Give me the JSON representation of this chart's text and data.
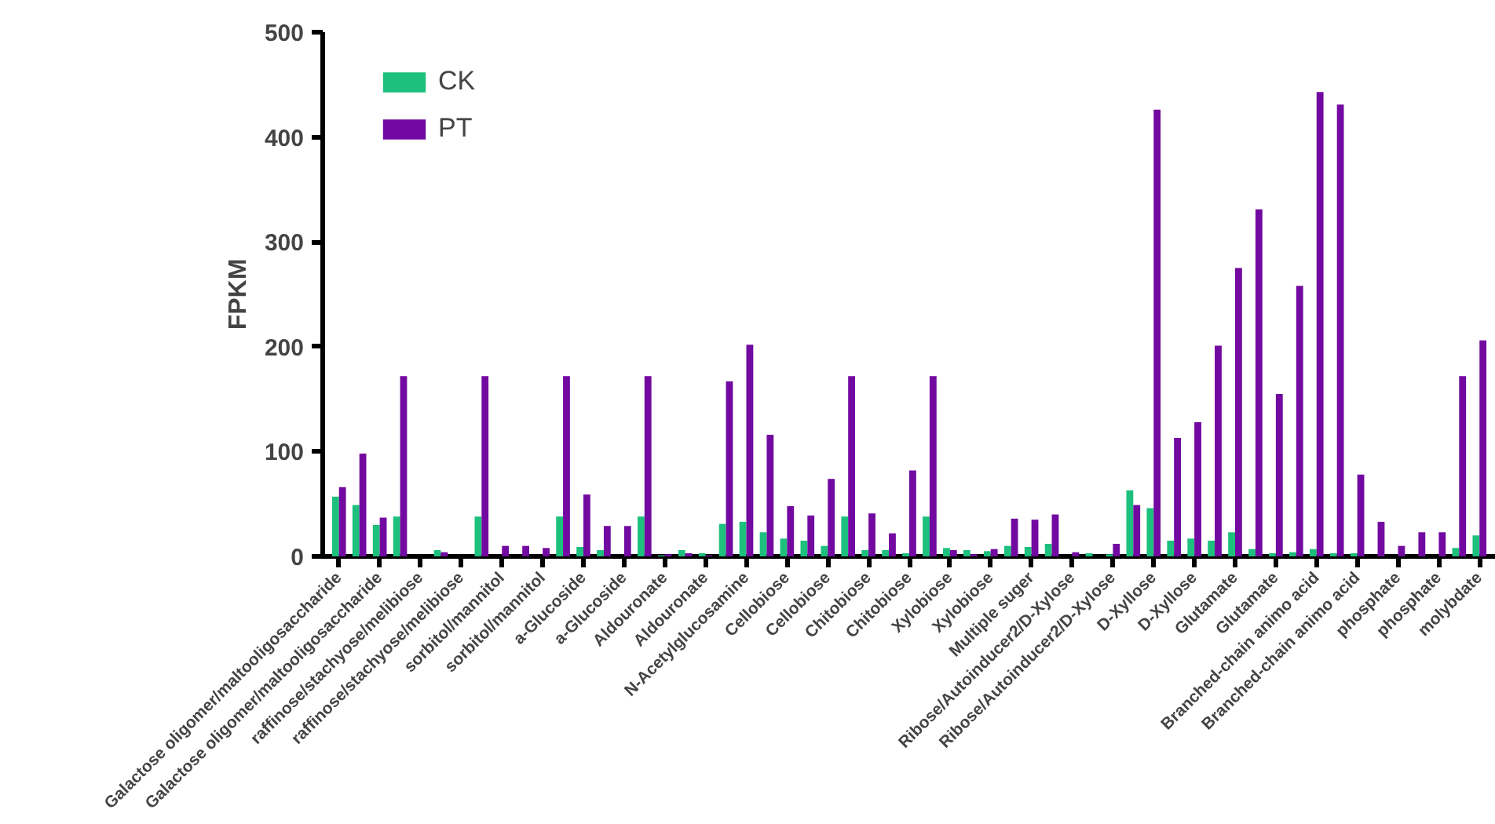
{
  "chart_data": {
    "type": "bar",
    "ylabel": "FPKM",
    "categories": [
      "Galactose oligomer/maltooligosaccharide",
      null,
      "Galactose oligomer/maltooligosaccharide",
      null,
      "raffinose/stachyose/melibiose",
      null,
      "raffinose/stachyose/melibiose",
      null,
      "sorbitol/mannitol",
      null,
      "sorbitol/mannitol",
      null,
      "a-Glucoside",
      null,
      "a-Glucoside",
      null,
      "Aldouronate",
      null,
      "Aldouronate",
      null,
      "N-Acetylglucosamine",
      null,
      "Cellobiose",
      null,
      "Cellobiose",
      null,
      "Chitobiose",
      null,
      "Chitobiose",
      null,
      "Xylobiose",
      null,
      "Xylobiose",
      null,
      "Multiple suger",
      null,
      "Ribose/Autoinducer2/D-Xylose",
      null,
      "Ribose/Autoinducer2/D-Xylose",
      null,
      "D-Xyllose",
      null,
      "D-Xyllose",
      null,
      "Glutamate",
      null,
      "Glutamate",
      null,
      "Branched-chain animo acid",
      null,
      "Branched-chain animo acid",
      null,
      "phosphate",
      null,
      "phosphate",
      null,
      "molybdate"
    ],
    "series": [
      {
        "name": "CK",
        "color": "#1dc07c",
        "values": [
          57,
          49,
          30,
          38,
          0,
          6,
          0,
          38,
          0,
          0,
          0,
          38,
          9,
          6,
          0,
          38,
          1,
          6,
          3,
          31,
          33,
          23,
          17,
          15,
          10,
          38,
          6,
          6,
          3,
          38,
          8,
          6,
          5,
          10,
          9,
          12,
          0,
          3,
          2,
          63,
          46,
          15,
          17,
          15,
          23,
          7,
          3,
          4,
          7,
          3,
          3,
          0,
          0,
          0,
          0,
          8,
          20
        ]
      },
      {
        "name": "PT",
        "color": "#7209a0",
        "values": [
          66,
          98,
          37,
          172,
          0,
          4,
          0,
          172,
          10,
          10,
          8,
          172,
          59,
          29,
          29,
          172,
          2,
          3,
          1,
          167,
          202,
          116,
          48,
          39,
          74,
          172,
          41,
          22,
          82,
          172,
          6,
          2,
          7,
          36,
          35,
          40,
          4,
          0,
          12,
          49,
          426,
          113,
          128,
          201,
          275,
          331,
          155,
          258,
          443,
          431,
          78,
          33,
          10,
          23,
          23,
          172,
          206
        ]
      }
    ],
    "ylim": [
      0,
      500
    ],
    "yticks": [
      0,
      100,
      200,
      300,
      400,
      500
    ],
    "grid": false,
    "legend": "top left"
  }
}
